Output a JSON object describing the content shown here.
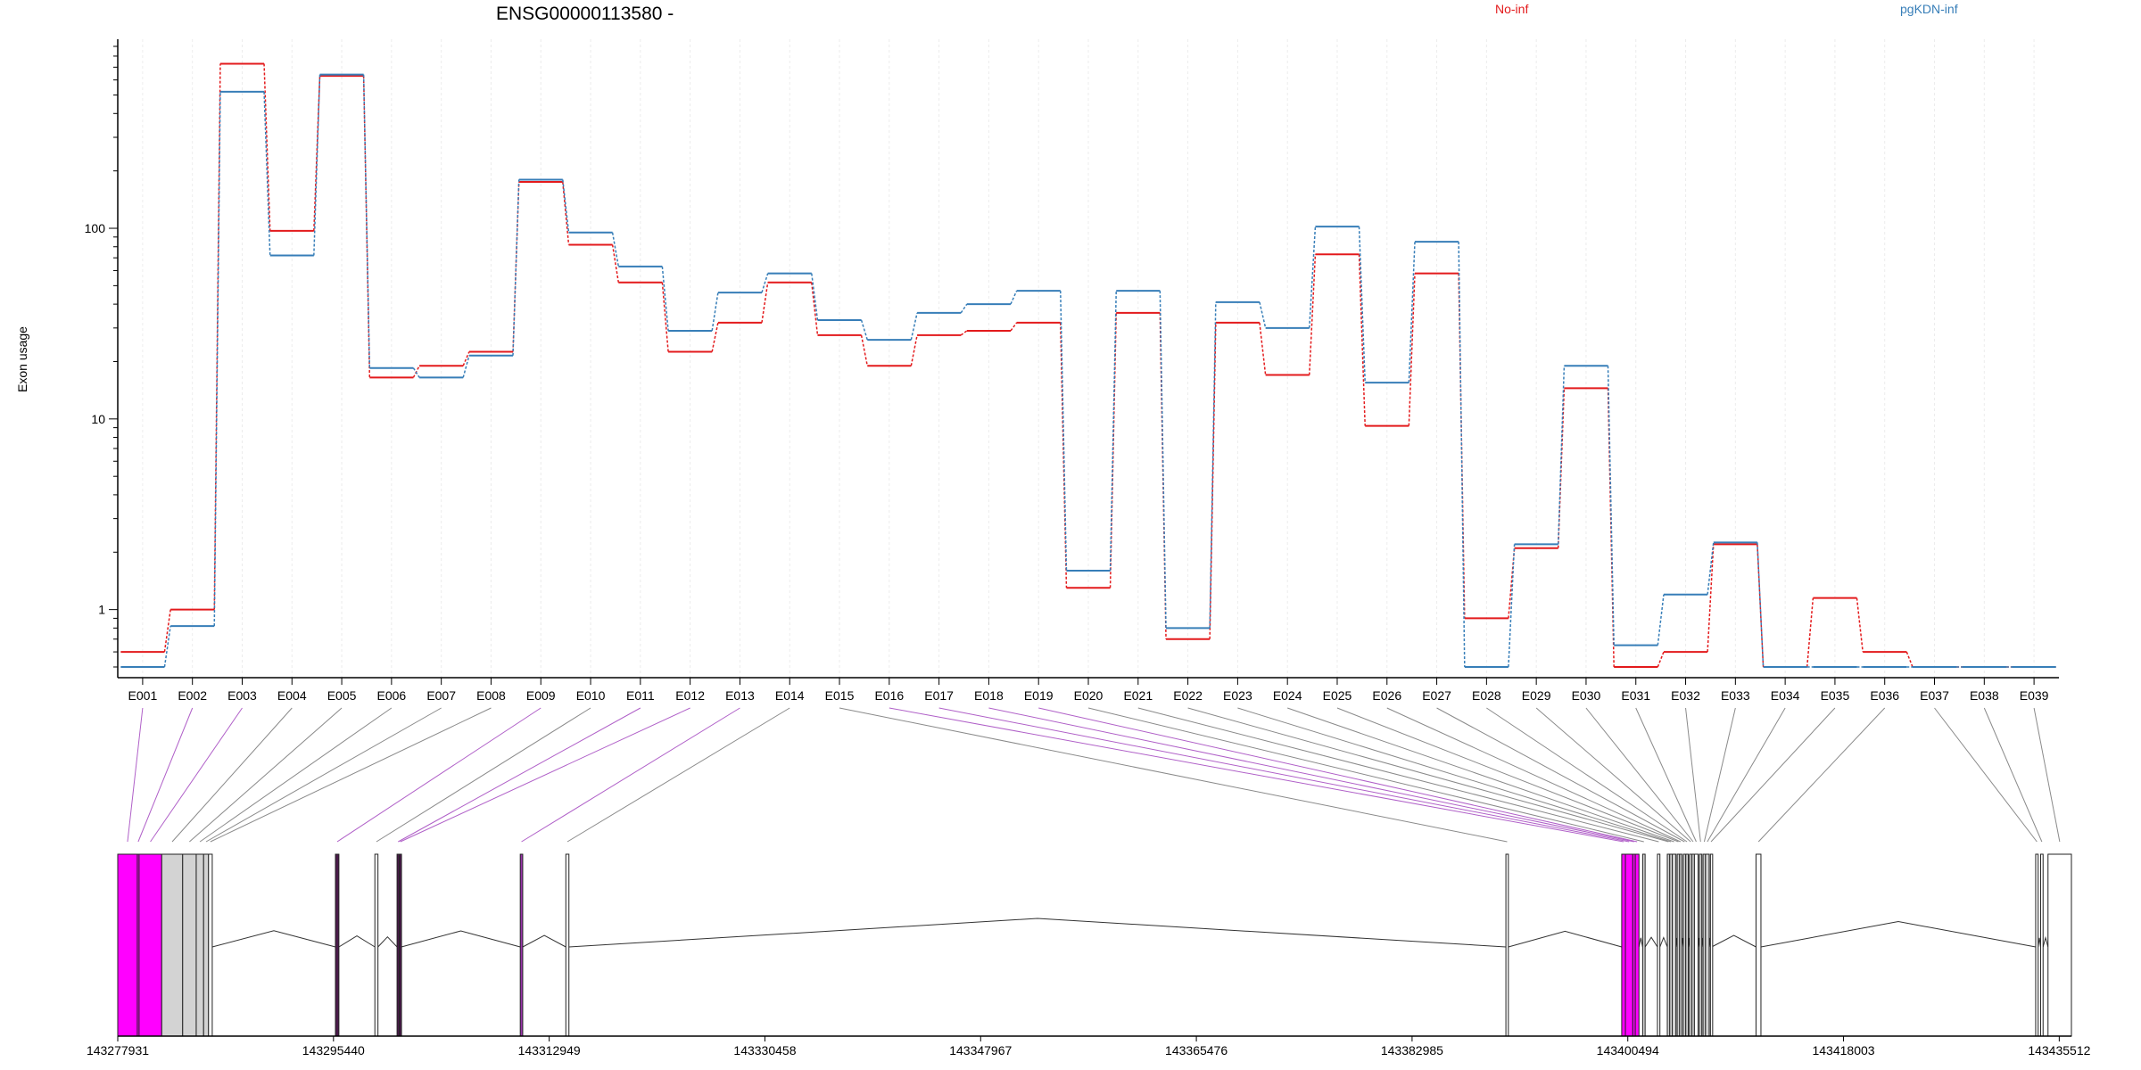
{
  "chart_data": {
    "type": "line",
    "title": "ENSG00000113580 -",
    "ylabel": "Exon usage",
    "yscale": "log",
    "ylim": [
      0.5,
      900
    ],
    "ytick_labels": [
      "1",
      "10",
      "100"
    ],
    "categories": [
      "E001",
      "E002",
      "E003",
      "E004",
      "E005",
      "E006",
      "E007",
      "E008",
      "E009",
      "E010",
      "E011",
      "E012",
      "E013",
      "E014",
      "E015",
      "E016",
      "E017",
      "E018",
      "E019",
      "E020",
      "E021",
      "E022",
      "E023",
      "E024",
      "E025",
      "E026",
      "E027",
      "E028",
      "E029",
      "E030",
      "E031",
      "E032",
      "E033",
      "E034",
      "E035",
      "E036",
      "E037",
      "E038",
      "E039"
    ],
    "series": [
      {
        "name": "No-inf",
        "color": "#e31a1c",
        "values": [
          0.6,
          1.0,
          730,
          97,
          630,
          16.5,
          19,
          22.5,
          175,
          82,
          52,
          22.5,
          32,
          52,
          27.5,
          19,
          27.5,
          29,
          32,
          1.3,
          36,
          0.7,
          32,
          17,
          73,
          9.2,
          58,
          0.9,
          2.1,
          14.5,
          0.5,
          0.6,
          2.2,
          0.5,
          1.15,
          0.6,
          0.5,
          0.5,
          0.5
        ]
      },
      {
        "name": "pgKDN-inf",
        "color": "#377eb8",
        "values": [
          0.5,
          0.82,
          520,
          72,
          640,
          18.5,
          16.5,
          21.5,
          180,
          95,
          63,
          29,
          46,
          58,
          33,
          26,
          36,
          40,
          47,
          1.6,
          47,
          0.8,
          41,
          30,
          102,
          15.5,
          85,
          0.5,
          2.2,
          19,
          0.65,
          1.2,
          2.25,
          0.5,
          0.5,
          0.5,
          0.5,
          0.5,
          0.5
        ]
      }
    ],
    "gene_model": {
      "coordinate_labels": [
        "143277931",
        "143295440",
        "143312949",
        "143330458",
        "143347967",
        "143365476",
        "143382985",
        "143400494",
        "143418003",
        "143435512"
      ],
      "coord_start": 143277931,
      "coord_end": 143436500,
      "highlight_color": "#ff00ff",
      "exons": [
        {
          "name": "E001",
          "start": 143277931,
          "end": 143279520,
          "fill": "#ff00ff"
        },
        {
          "name": "E002",
          "start": 143279520,
          "end": 143279660,
          "fill": "#ff00ff"
        },
        {
          "name": "E003",
          "start": 143279660,
          "end": 143281500,
          "fill": "#ff00ff"
        },
        {
          "name": "E004",
          "start": 143281500,
          "end": 143283200,
          "fill": "#d3d3d3"
        },
        {
          "name": "E005",
          "start": 143283200,
          "end": 143284300,
          "fill": "#d3d3d3"
        },
        {
          "name": "E006",
          "start": 143284300,
          "end": 143284900,
          "fill": "#d3d3d3"
        },
        {
          "name": "E007",
          "start": 143284900,
          "end": 143285300,
          "fill": "#d3d3d3"
        },
        {
          "name": "E008",
          "start": 143285300,
          "end": 143285600,
          "fill": "#ffffff"
        },
        {
          "name": "E009",
          "start": 143295600,
          "end": 143295880,
          "fill": "#4a1a4a"
        },
        {
          "name": "E010",
          "start": 143298800,
          "end": 143299050,
          "fill": "#ffffff"
        },
        {
          "name": "E011",
          "start": 143300600,
          "end": 143300780,
          "fill": "#4a1a4a"
        },
        {
          "name": "E012",
          "start": 143300780,
          "end": 143300950,
          "fill": "#4a1a4a"
        },
        {
          "name": "E013",
          "start": 143310600,
          "end": 143310800,
          "fill": "#9933aa"
        },
        {
          "name": "E014",
          "start": 143314300,
          "end": 143314550,
          "fill": "#ffffff"
        },
        {
          "name": "E015",
          "start": 143390600,
          "end": 143390800,
          "fill": "#ffffff"
        },
        {
          "name": "E016",
          "start": 143400000,
          "end": 143400300,
          "fill": "#ff00ff"
        },
        {
          "name": "E017",
          "start": 143400300,
          "end": 143400900,
          "fill": "#ff00ff"
        },
        {
          "name": "E018",
          "start": 143400900,
          "end": 143401100,
          "fill": "#ff00ff"
        },
        {
          "name": "E019",
          "start": 143401100,
          "end": 143401400,
          "fill": "#ff00ff"
        },
        {
          "name": "E020",
          "start": 143401700,
          "end": 143401900,
          "fill": "#d3d3d3"
        },
        {
          "name": "E021",
          "start": 143402900,
          "end": 143403100,
          "fill": "#ffffff"
        },
        {
          "name": "E022",
          "start": 143403700,
          "end": 143403900,
          "fill": "#d3d3d3"
        },
        {
          "name": "E023",
          "start": 143403900,
          "end": 143404100,
          "fill": "#d3d3d3"
        },
        {
          "name": "E024",
          "start": 143404100,
          "end": 143404400,
          "fill": "#d3d3d3"
        },
        {
          "name": "E025",
          "start": 143404500,
          "end": 143404700,
          "fill": "#d3d3d3"
        },
        {
          "name": "E026",
          "start": 143404700,
          "end": 143404850,
          "fill": "#d3d3d3"
        },
        {
          "name": "E027",
          "start": 143405000,
          "end": 143405200,
          "fill": "#d3d3d3"
        },
        {
          "name": "E028",
          "start": 143405200,
          "end": 143405400,
          "fill": "#d3d3d3"
        },
        {
          "name": "E029",
          "start": 143405500,
          "end": 143405700,
          "fill": "#d3d3d3"
        },
        {
          "name": "E030",
          "start": 143405700,
          "end": 143405900,
          "fill": "#d3d3d3"
        },
        {
          "name": "E031",
          "start": 143405900,
          "end": 143406200,
          "fill": "#ffffff"
        },
        {
          "name": "E032",
          "start": 143406300,
          "end": 143406500,
          "fill": "#d3d3d3"
        },
        {
          "name": "E033",
          "start": 143406600,
          "end": 143406800,
          "fill": "#d3d3d3"
        },
        {
          "name": "E034",
          "start": 143406800,
          "end": 143407100,
          "fill": "#d3d3d3"
        },
        {
          "name": "E035",
          "start": 143407200,
          "end": 143407300,
          "fill": "#ffffff"
        },
        {
          "name": "E036",
          "start": 143410900,
          "end": 143411300,
          "fill": "#ffffff"
        },
        {
          "name": "E037",
          "start": 143433600,
          "end": 143433800,
          "fill": "#ffffff"
        },
        {
          "name": "E038",
          "start": 143434000,
          "end": 143434200,
          "fill": "#ffffff"
        },
        {
          "name": "E039",
          "start": 143434600,
          "end": 143436500,
          "fill": "#ffffff"
        }
      ]
    }
  }
}
